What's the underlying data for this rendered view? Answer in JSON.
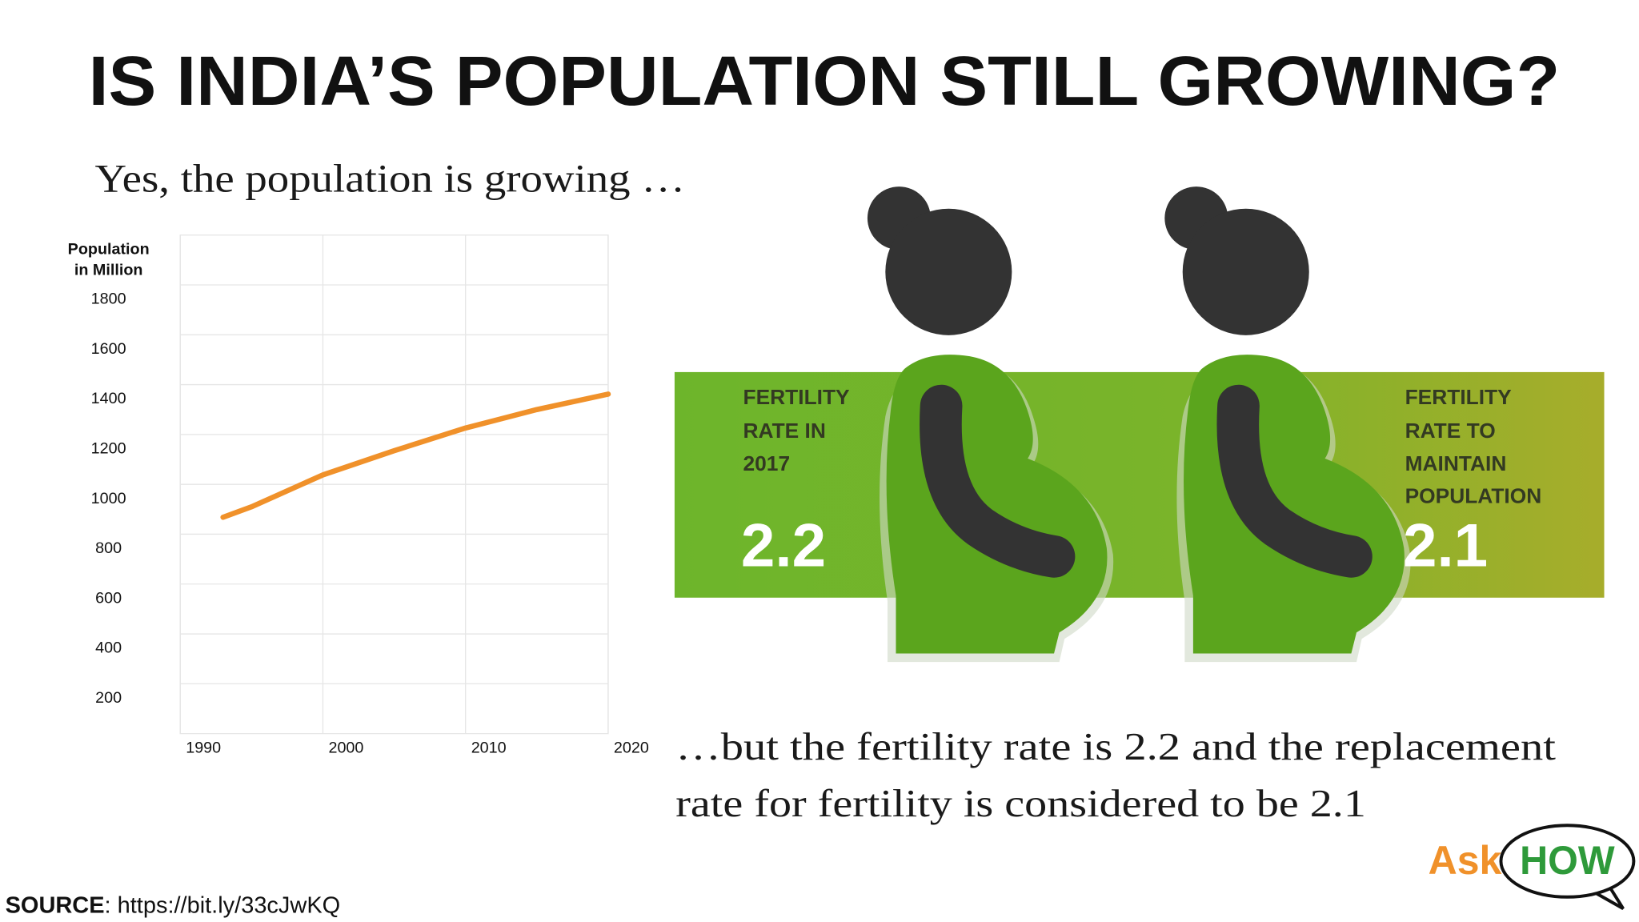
{
  "header": {
    "title": "IS INDIA’S POPULATION STILL GROWING?"
  },
  "subtitle": "Yes, the population is growing …",
  "chart_data": {
    "type": "line",
    "ylabel": [
      "Population",
      "in Million"
    ],
    "x": [
      1993,
      1995,
      2000,
      2005,
      2010,
      2015,
      2020
    ],
    "series": [
      {
        "name": "Population",
        "color": "#f0912a",
        "values": [
          868,
          910,
          1038,
          1135,
          1226,
          1300,
          1362
        ]
      }
    ],
    "xlim": [
      1990,
      2020
    ],
    "xticks": [
      1990,
      2000,
      2010,
      2020
    ],
    "ylim": [
      0,
      2000
    ],
    "yticks": [
      200,
      400,
      600,
      800,
      1000,
      1200,
      1400,
      1600,
      1800
    ],
    "grid": true
  },
  "fertility": {
    "current": {
      "label": [
        "FERTILITY",
        "RATE IN",
        "2017"
      ],
      "value": 2.2
    },
    "replacement": {
      "label": [
        "FERTILITY",
        "RATE TO",
        "MAINTAIN",
        "POPULATION"
      ],
      "value": 2.1
    }
  },
  "caption": [
    "…but the fertility rate is 2.2 and the replacement",
    "rate for fertility is considered to be 2.1"
  ],
  "source": {
    "label": "SOURCE",
    "text": ": https://bit.ly/33cJwKQ"
  },
  "logo": {
    "ask": "Ask",
    "how": "HOW"
  }
}
